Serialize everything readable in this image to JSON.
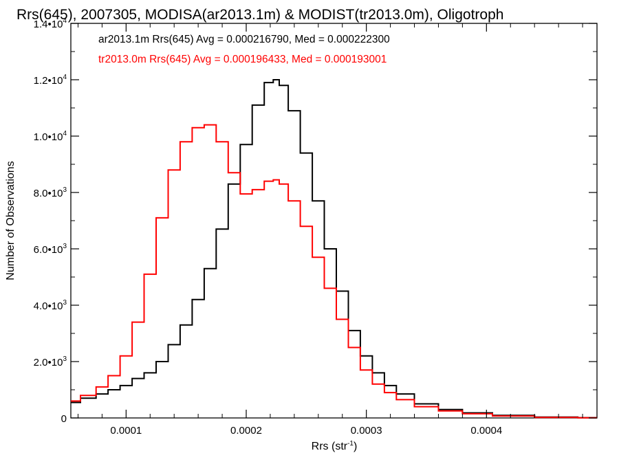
{
  "chart_data": {
    "type": "line",
    "step": true,
    "title": "Rrs(645), 2007305, MODISA(ar2013.1m) & MODIST(tr2013.0m), Oligotroph",
    "xlabel": "Rrs (str",
    "xlabel_sup": "-1",
    "xlabel_tail": ")",
    "ylabel": "Number of Observations",
    "xlim": [
      5.4e-05,
      0.000492
    ],
    "ylim": [
      0,
      14000
    ],
    "x_tick_values": [
      0.0001,
      0.0002,
      0.0003,
      0.0004
    ],
    "x_tick_labels": [
      "0.0001",
      "0.0002",
      "0.0003",
      "0.0004"
    ],
    "y_tick_values": [
      0,
      2000,
      4000,
      6000,
      8000,
      10000,
      12000,
      14000
    ],
    "y_tick_labels": [
      {
        "mant": "0",
        "exp": ""
      },
      {
        "mant": "2.0•10",
        "exp": "3"
      },
      {
        "mant": "4.0•10",
        "exp": "3"
      },
      {
        "mant": "6.0•10",
        "exp": "3"
      },
      {
        "mant": "8.0•10",
        "exp": "3"
      },
      {
        "mant": "1.0•10",
        "exp": "4"
      },
      {
        "mant": "1.2•10",
        "exp": "4"
      },
      {
        "mant": "1.4•10",
        "exp": "4"
      }
    ],
    "legend": [
      "ar2013.1m Rrs(645) Avg = 0.000216790, Med = 0.000222300",
      "tr2013.0m Rrs(645) Avg = 0.000196433, Med = 0.000193001"
    ],
    "legend_position": "top-left",
    "series": [
      {
        "color": "#000000",
        "x": [
          5.4e-05,
          7e-05,
          8e-05,
          9e-05,
          0.0001,
          0.00011,
          0.00012,
          0.00013,
          0.00014,
          0.00015,
          0.00016,
          0.00017,
          0.00018,
          0.00019,
          0.0002,
          0.00021,
          0.00022,
          0.000225,
          0.00023,
          0.00024,
          0.00025,
          0.00026,
          0.00027,
          0.00028,
          0.00029,
          0.0003,
          0.00031,
          0.00032,
          0.00033,
          0.00035,
          0.00037,
          0.00039,
          0.00042,
          0.00046,
          0.000492
        ],
        "values": [
          550,
          700,
          850,
          1000,
          1150,
          1400,
          1600,
          2000,
          2600,
          3300,
          4200,
          5300,
          6700,
          8300,
          9700,
          11100,
          11900,
          12000,
          11800,
          10900,
          9400,
          7700,
          6000,
          4500,
          3100,
          2200,
          1600,
          1150,
          850,
          500,
          300,
          180,
          90,
          30,
          10
        ]
      },
      {
        "color": "#ff0000",
        "x": [
          5.4e-05,
          7e-05,
          8e-05,
          9e-05,
          0.0001,
          0.00011,
          0.00012,
          0.00013,
          0.00014,
          0.00015,
          0.00016,
          0.00017,
          0.00018,
          0.00019,
          0.0002,
          0.00021,
          0.00022,
          0.000225,
          0.00023,
          0.00024,
          0.00025,
          0.00026,
          0.00027,
          0.00028,
          0.00029,
          0.0003,
          0.00031,
          0.00032,
          0.00033,
          0.00035,
          0.00037,
          0.00039,
          0.00042,
          0.00046,
          0.000492
        ],
        "values": [
          600,
          800,
          1100,
          1500,
          2200,
          3400,
          5100,
          7100,
          8800,
          9800,
          10300,
          10400,
          9800,
          8700,
          7950,
          8100,
          8400,
          8450,
          8300,
          7700,
          6800,
          5700,
          4600,
          3500,
          2500,
          1700,
          1200,
          900,
          650,
          400,
          250,
          150,
          70,
          20,
          5
        ]
      }
    ]
  }
}
